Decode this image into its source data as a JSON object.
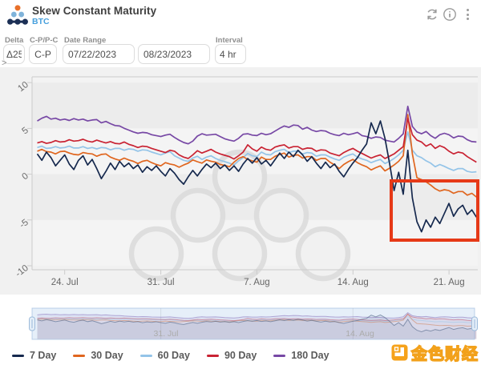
{
  "header": {
    "title": "Skew Constant Maturity",
    "subtitle": "BTC",
    "icons": [
      "app-logo-icon",
      "refresh-icon",
      "info-icon",
      "kebab-menu-icon"
    ]
  },
  "controls": {
    "delta": {
      "label": "Delta",
      "value": "Δ25"
    },
    "cp_pc": {
      "label": "C-P/P-C",
      "value": "C-P"
    },
    "date_range": {
      "label": "Date Range",
      "from": "07/22/2023",
      "to": "08/23/2023"
    },
    "interval": {
      "label": "Interval",
      "value": "4 hr"
    },
    "expander": ">"
  },
  "site_watermark": {
    "text": "金色财经",
    "accent_color": "#f6a21a"
  },
  "annotation": {
    "type": "highlight-box",
    "color": "#e63917"
  },
  "chart_data": {
    "type": "line",
    "title": "Skew Constant Maturity",
    "xlabel": "",
    "ylabel": "",
    "ylim": [
      -10,
      10
    ],
    "grid": "alternating-bands",
    "legend_position": "bottom",
    "x_axis": {
      "start_date": "07/22/2023",
      "end_date": "08/23/2023",
      "interval": "4 hr",
      "tick_labels": [
        "24. Jul",
        "31. Jul",
        "7. Aug",
        "14. Aug",
        "21. Aug"
      ],
      "tick_days": [
        2,
        9,
        16,
        23,
        30
      ]
    },
    "y_axis": {
      "tick_labels": [
        "10",
        "5",
        "0",
        "-5",
        "-10"
      ],
      "tick_values": [
        10,
        5,
        0,
        -5,
        -10
      ]
    },
    "navigator": {
      "labels": [
        "31. Jul",
        "14. Aug"
      ],
      "label_days": [
        9,
        23
      ]
    },
    "t_step_days": 0.3333,
    "series": [
      {
        "name": "7 Day",
        "color": "#16294e",
        "values": [
          2.2,
          1.5,
          2.4,
          1.8,
          0.9,
          1.5,
          2.1,
          1.1,
          0.5,
          1.5,
          2.0,
          1.0,
          1.6,
          0.6,
          -0.5,
          0.3,
          1.2,
          0.5,
          1.4,
          0.8,
          1.2,
          0.6,
          1.0,
          0.2,
          0.8,
          0.4,
          0.9,
          0.3,
          -0.2,
          0.6,
          0.1,
          -0.6,
          -1.1,
          -0.3,
          0.4,
          -0.2,
          0.5,
          1.1,
          0.7,
          1.2,
          0.6,
          1.0,
          0.4,
          0.9,
          0.3,
          1.1,
          1.7,
          1.2,
          1.8,
          1.1,
          1.5,
          0.9,
          1.6,
          2.3,
          1.7,
          2.4,
          1.9,
          2.6,
          2.1,
          1.4,
          1.9,
          1.2,
          0.6,
          1.3,
          0.7,
          1.1,
          0.3,
          -0.3,
          0.5,
          1.2,
          1.8,
          2.6,
          3.3,
          5.6,
          4.4,
          5.8,
          3.9,
          1.2,
          -1.8,
          0.2,
          -2.2,
          2.6,
          -2.6,
          -5.2,
          -6.3,
          -5.0,
          -5.8,
          -4.7,
          -5.4,
          -4.3,
          -3.2,
          -4.6,
          -3.8,
          -3.4,
          -4.4,
          -3.9,
          -4.7
        ]
      },
      {
        "name": "30 Day",
        "color": "#e0661f",
        "values": [
          2.5,
          2.7,
          2.45,
          2.4,
          2.2,
          2.45,
          2.5,
          2.3,
          2.15,
          2.1,
          2.35,
          2.25,
          2.2,
          1.95,
          2.15,
          2.2,
          1.85,
          1.65,
          1.5,
          1.75,
          1.55,
          1.4,
          1.15,
          1.4,
          1.5,
          1.25,
          1.05,
          0.9,
          1.25,
          1.1,
          1.0,
          0.75,
          1.0,
          1.2,
          1.55,
          1.35,
          1.2,
          1.55,
          1.4,
          1.3,
          1.05,
          0.95,
          0.8,
          1.3,
          1.7,
          1.9,
          1.6,
          1.45,
          1.3,
          1.85,
          1.6,
          1.6,
          1.95,
          2.15,
          2.3,
          1.85,
          2.05,
          2.1,
          1.75,
          1.9,
          1.9,
          1.5,
          1.7,
          1.7,
          1.3,
          1.0,
          0.6,
          1.05,
          1.35,
          1.6,
          1.25,
          1.0,
          0.8,
          0.45,
          0.7,
          0.9,
          0.35,
          0.65,
          1.0,
          1.4,
          2.0,
          6.5,
          2.2,
          -0.4,
          -0.6,
          -0.85,
          -1.2,
          -1.6,
          -1.85,
          -1.7,
          -1.8,
          -2.1,
          -1.9,
          -1.9,
          -2.3,
          -2.1,
          -2.5
        ]
      },
      {
        "name": "60 Day",
        "color": "#94c4e8",
        "values": [
          2.9,
          3.05,
          2.8,
          2.85,
          3.0,
          2.85,
          2.9,
          3.05,
          2.85,
          2.85,
          3.0,
          2.8,
          2.9,
          2.75,
          2.9,
          2.85,
          2.65,
          2.8,
          2.8,
          2.6,
          2.75,
          2.7,
          2.5,
          2.65,
          2.6,
          2.4,
          2.25,
          2.1,
          2.3,
          2.45,
          2.0,
          1.75,
          1.5,
          1.4,
          1.75,
          1.95,
          1.6,
          1.85,
          2.0,
          1.7,
          1.5,
          1.35,
          1.2,
          1.0,
          1.45,
          1.8,
          2.25,
          2.0,
          1.9,
          2.4,
          2.15,
          2.1,
          2.45,
          2.6,
          2.7,
          2.35,
          2.5,
          2.5,
          2.2,
          2.35,
          2.3,
          1.95,
          2.1,
          2.1,
          1.85,
          1.65,
          1.5,
          1.85,
          2.05,
          2.2,
          1.85,
          1.65,
          1.5,
          1.25,
          1.45,
          1.6,
          1.15,
          1.4,
          1.7,
          2.1,
          2.6,
          4.6,
          2.6,
          2.0,
          1.8,
          1.45,
          1.2,
          0.8,
          1.05,
          0.85,
          0.6,
          0.4,
          0.6,
          0.6,
          0.3,
          0.2,
          0.25
        ]
      },
      {
        "name": "90 Day",
        "color": "#c92333",
        "values": [
          3.4,
          3.55,
          3.35,
          3.45,
          3.65,
          3.5,
          3.55,
          3.75,
          3.6,
          3.65,
          3.8,
          3.6,
          3.5,
          3.7,
          3.55,
          3.4,
          3.55,
          3.35,
          3.3,
          3.5,
          3.25,
          3.1,
          2.9,
          3.05,
          3.0,
          2.8,
          2.65,
          2.5,
          2.35,
          2.6,
          2.5,
          2.1,
          1.85,
          1.7,
          2.1,
          2.55,
          2.3,
          2.5,
          2.7,
          2.4,
          2.2,
          2.05,
          1.9,
          1.65,
          2.0,
          2.4,
          3.2,
          2.75,
          2.5,
          2.95,
          2.7,
          2.6,
          2.95,
          3.1,
          3.2,
          2.85,
          3.0,
          3.0,
          2.7,
          2.85,
          2.8,
          2.5,
          2.65,
          2.6,
          2.3,
          2.15,
          2.0,
          2.35,
          2.6,
          2.8,
          2.5,
          2.25,
          2.0,
          1.75,
          1.95,
          2.1,
          1.7,
          1.95,
          2.2,
          2.6,
          3.0,
          6.1,
          4.3,
          3.7,
          3.5,
          3.05,
          3.3,
          2.8,
          3.1,
          2.9,
          2.5,
          2.2,
          2.4,
          2.3,
          1.9,
          1.6,
          1.3
        ]
      },
      {
        "name": "180 Day",
        "color": "#7748a5",
        "values": [
          5.8,
          6.1,
          6.3,
          6.0,
          6.1,
          5.9,
          6.0,
          5.85,
          6.05,
          5.9,
          6.0,
          5.8,
          5.9,
          5.95,
          5.6,
          5.75,
          5.5,
          5.3,
          5.25,
          5.0,
          4.8,
          4.6,
          4.45,
          4.55,
          4.5,
          4.3,
          4.2,
          4.1,
          4.25,
          4.35,
          4.0,
          3.7,
          3.45,
          3.3,
          3.6,
          4.15,
          4.4,
          4.25,
          4.3,
          4.35,
          4.1,
          3.85,
          3.7,
          3.6,
          3.9,
          4.35,
          4.4,
          4.25,
          4.2,
          4.45,
          4.3,
          4.4,
          4.7,
          5.0,
          5.25,
          5.1,
          5.35,
          5.3,
          4.9,
          5.1,
          4.8,
          4.65,
          4.75,
          4.7,
          4.45,
          4.3,
          4.2,
          4.45,
          4.3,
          4.4,
          4.55,
          4.2,
          4.1,
          3.9,
          4.05,
          4.0,
          3.7,
          3.6,
          3.5,
          3.9,
          4.4,
          7.4,
          5.2,
          4.6,
          4.4,
          4.65,
          4.2,
          3.9,
          4.3,
          4.45,
          4.3,
          3.95,
          4.15,
          4.1,
          3.75,
          3.55,
          3.5
        ]
      }
    ]
  }
}
